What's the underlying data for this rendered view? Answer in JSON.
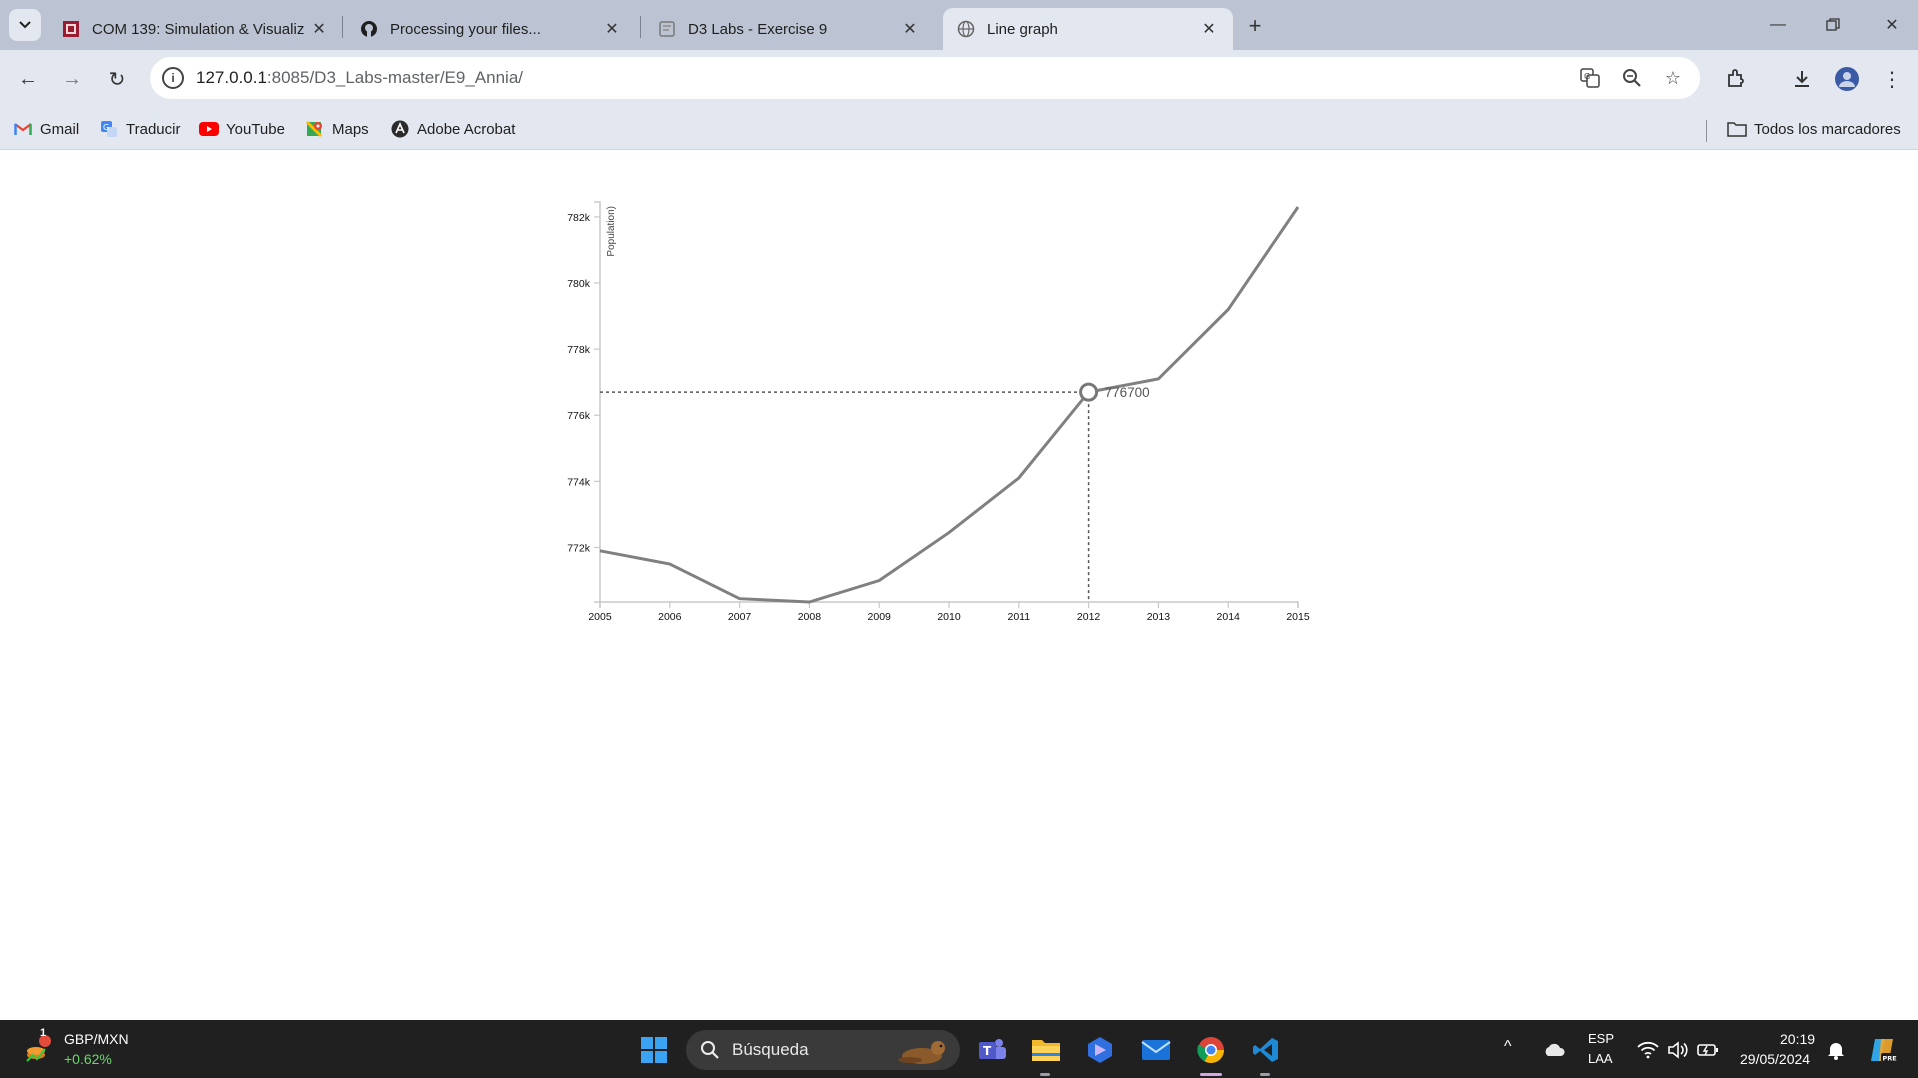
{
  "browser": {
    "tabs": [
      {
        "title": "COM 139: Simulation & Visualiz",
        "favicon": "university-crest-icon",
        "active": false
      },
      {
        "title": "Processing your files...",
        "favicon": "github-icon",
        "active": false
      },
      {
        "title": "D3 Labs - Exercise 9",
        "favicon": "page-icon",
        "active": false
      },
      {
        "title": "Line graph",
        "favicon": "globe-icon",
        "active": true
      }
    ],
    "url_host": "127.0.0.1",
    "url_path": ":8085/D3_Labs-master/E9_Annia/",
    "bookmarks": [
      {
        "label": "Gmail",
        "icon": "gmail-icon"
      },
      {
        "label": "Traducir",
        "icon": "translate-icon"
      },
      {
        "label": "YouTube",
        "icon": "youtube-icon"
      },
      {
        "label": "Maps",
        "icon": "maps-icon"
      },
      {
        "label": "Adobe Acrobat",
        "icon": "acrobat-icon"
      }
    ],
    "all_bookmarks_label": "Todos los marcadores"
  },
  "chart_data": {
    "type": "line",
    "ylabel": "Population)",
    "x": [
      2005,
      2006,
      2007,
      2008,
      2009,
      2010,
      2011,
      2012,
      2013,
      2014,
      2015
    ],
    "y": [
      771900,
      771500,
      770450,
      770350,
      771000,
      772450,
      774100,
      776700,
      777100,
      779200,
      782300
    ],
    "x_ticks": [
      "2005",
      "2006",
      "2007",
      "2008",
      "2009",
      "2010",
      "2011",
      "2012",
      "2013",
      "2014",
      "2015"
    ],
    "y_ticks": [
      {
        "value": 772000,
        "label": "772k"
      },
      {
        "value": 774000,
        "label": "774k"
      },
      {
        "value": 776000,
        "label": "776k"
      },
      {
        "value": 778000,
        "label": "778k"
      },
      {
        "value": 780000,
        "label": "780k"
      },
      {
        "value": 782000,
        "label": "782k"
      }
    ],
    "ylim": [
      770350,
      782300
    ],
    "xlim": [
      2005,
      2015
    ],
    "line_color": "#808080",
    "focus": {
      "x": 2012,
      "y": 776700,
      "label": "776700"
    },
    "grid": false
  },
  "taskbar": {
    "ticker_name": "GBP/MXN",
    "ticker_change": "+0.62%",
    "ticker_badge": "1",
    "search_placeholder": "Búsqueda",
    "lang_top": "ESP",
    "lang_bottom": "LAA",
    "time": "20:19",
    "date": "29/05/2024"
  }
}
